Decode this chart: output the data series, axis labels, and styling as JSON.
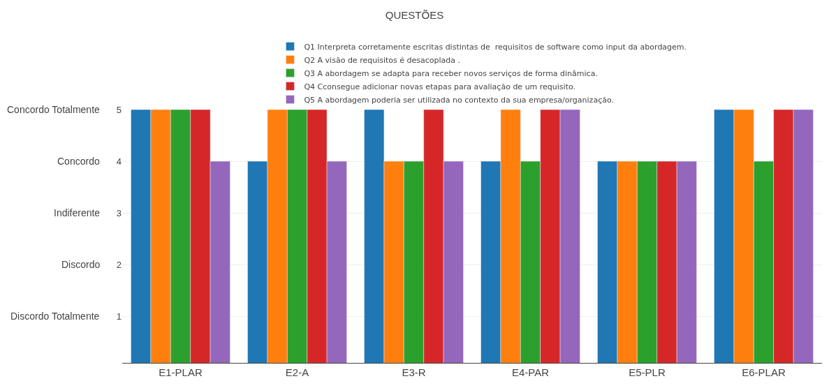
{
  "chart_data": {
    "type": "bar",
    "title": "QUESTÕES",
    "categories": [
      "E1-PLAR",
      "E2-A",
      "E3-R",
      "E4-PAR",
      "E5-PLR",
      "E6-PLAR"
    ],
    "series": [
      {
        "name": "Q1 Interpreta corretamente escritas distintas de  requisitos de software como input da abordagem.",
        "color": "#1f77b4",
        "values": [
          5,
          4,
          5,
          4,
          4,
          5
        ]
      },
      {
        "name": "Q2 A visão de requisitos é desacoplada .",
        "color": "#ff7f0e",
        "values": [
          5,
          5,
          4,
          5,
          4,
          5
        ]
      },
      {
        "name": "Q3 A abordagem se adapta para receber novos serviços de forma dinâmica.",
        "color": "#2ca02c",
        "values": [
          5,
          5,
          4,
          4,
          4,
          4
        ]
      },
      {
        "name": "Q4 Cconsegue adicionar novas etapas para avaliação de um requisito.",
        "color": "#d62728",
        "values": [
          5,
          5,
          5,
          5,
          4,
          5
        ]
      },
      {
        "name": "Q5 A abordagem poderia ser utilizada no contexto da sua empresa/organização.",
        "color": "#9467bd",
        "values": [
          4,
          4,
          4,
          5,
          4,
          5
        ]
      }
    ],
    "ylim": [
      0.1,
      5
    ],
    "yticks": [
      1,
      2,
      3,
      4,
      5
    ],
    "grid": "y",
    "legend": "top",
    "annotations": [
      "Concordo Totalmente",
      "Concordo",
      "Indiferente",
      "Discordo",
      "Discordo Totalmente"
    ]
  }
}
